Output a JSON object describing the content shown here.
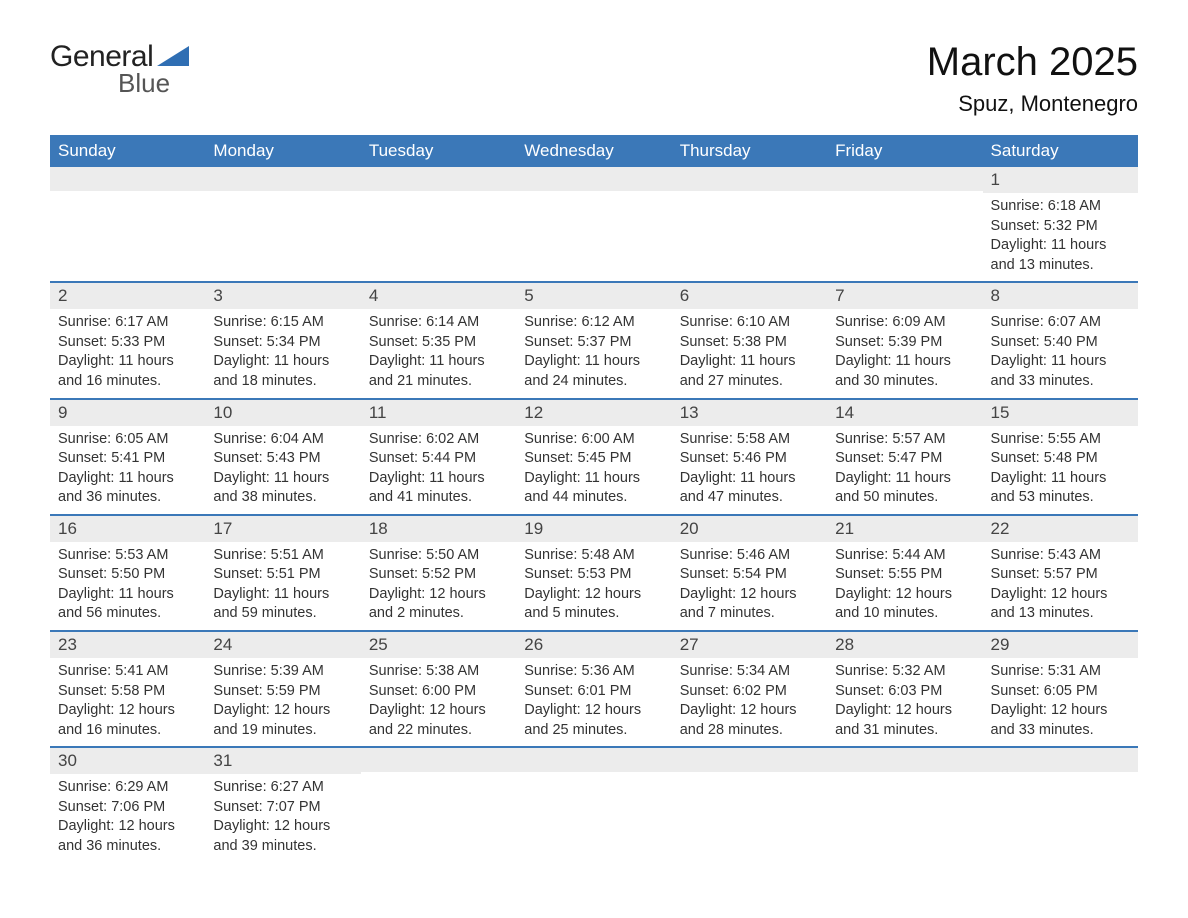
{
  "brand": {
    "general": "General",
    "blue": "Blue",
    "logo_color": "#2f6eb3"
  },
  "title": "March 2025",
  "location": "Spuz, Montenegro",
  "colors": {
    "header_bg": "#3b78b8",
    "header_text": "#ffffff",
    "strip_bg": "#ececec",
    "row_border": "#3b78b8",
    "text": "#333333",
    "bg": "#ffffff"
  },
  "typography": {
    "month_title_fontsize": 40,
    "location_fontsize": 22,
    "header_fontsize": 17,
    "daynum_fontsize": 17,
    "body_fontsize": 14.5,
    "logo_general_fontsize": 30,
    "logo_blue_fontsize": 26
  },
  "day_names": [
    "Sunday",
    "Monday",
    "Tuesday",
    "Wednesday",
    "Thursday",
    "Friday",
    "Saturday"
  ],
  "weeks": [
    [
      {
        "empty": true
      },
      {
        "empty": true
      },
      {
        "empty": true
      },
      {
        "empty": true
      },
      {
        "empty": true
      },
      {
        "empty": true
      },
      {
        "day": "1",
        "sunrise": "Sunrise: 6:18 AM",
        "sunset": "Sunset: 5:32 PM",
        "daylight1": "Daylight: 11 hours",
        "daylight2": "and 13 minutes."
      }
    ],
    [
      {
        "day": "2",
        "sunrise": "Sunrise: 6:17 AM",
        "sunset": "Sunset: 5:33 PM",
        "daylight1": "Daylight: 11 hours",
        "daylight2": "and 16 minutes."
      },
      {
        "day": "3",
        "sunrise": "Sunrise: 6:15 AM",
        "sunset": "Sunset: 5:34 PM",
        "daylight1": "Daylight: 11 hours",
        "daylight2": "and 18 minutes."
      },
      {
        "day": "4",
        "sunrise": "Sunrise: 6:14 AM",
        "sunset": "Sunset: 5:35 PM",
        "daylight1": "Daylight: 11 hours",
        "daylight2": "and 21 minutes."
      },
      {
        "day": "5",
        "sunrise": "Sunrise: 6:12 AM",
        "sunset": "Sunset: 5:37 PM",
        "daylight1": "Daylight: 11 hours",
        "daylight2": "and 24 minutes."
      },
      {
        "day": "6",
        "sunrise": "Sunrise: 6:10 AM",
        "sunset": "Sunset: 5:38 PM",
        "daylight1": "Daylight: 11 hours",
        "daylight2": "and 27 minutes."
      },
      {
        "day": "7",
        "sunrise": "Sunrise: 6:09 AM",
        "sunset": "Sunset: 5:39 PM",
        "daylight1": "Daylight: 11 hours",
        "daylight2": "and 30 minutes."
      },
      {
        "day": "8",
        "sunrise": "Sunrise: 6:07 AM",
        "sunset": "Sunset: 5:40 PM",
        "daylight1": "Daylight: 11 hours",
        "daylight2": "and 33 minutes."
      }
    ],
    [
      {
        "day": "9",
        "sunrise": "Sunrise: 6:05 AM",
        "sunset": "Sunset: 5:41 PM",
        "daylight1": "Daylight: 11 hours",
        "daylight2": "and 36 minutes."
      },
      {
        "day": "10",
        "sunrise": "Sunrise: 6:04 AM",
        "sunset": "Sunset: 5:43 PM",
        "daylight1": "Daylight: 11 hours",
        "daylight2": "and 38 minutes."
      },
      {
        "day": "11",
        "sunrise": "Sunrise: 6:02 AM",
        "sunset": "Sunset: 5:44 PM",
        "daylight1": "Daylight: 11 hours",
        "daylight2": "and 41 minutes."
      },
      {
        "day": "12",
        "sunrise": "Sunrise: 6:00 AM",
        "sunset": "Sunset: 5:45 PM",
        "daylight1": "Daylight: 11 hours",
        "daylight2": "and 44 minutes."
      },
      {
        "day": "13",
        "sunrise": "Sunrise: 5:58 AM",
        "sunset": "Sunset: 5:46 PM",
        "daylight1": "Daylight: 11 hours",
        "daylight2": "and 47 minutes."
      },
      {
        "day": "14",
        "sunrise": "Sunrise: 5:57 AM",
        "sunset": "Sunset: 5:47 PM",
        "daylight1": "Daylight: 11 hours",
        "daylight2": "and 50 minutes."
      },
      {
        "day": "15",
        "sunrise": "Sunrise: 5:55 AM",
        "sunset": "Sunset: 5:48 PM",
        "daylight1": "Daylight: 11 hours",
        "daylight2": "and 53 minutes."
      }
    ],
    [
      {
        "day": "16",
        "sunrise": "Sunrise: 5:53 AM",
        "sunset": "Sunset: 5:50 PM",
        "daylight1": "Daylight: 11 hours",
        "daylight2": "and 56 minutes."
      },
      {
        "day": "17",
        "sunrise": "Sunrise: 5:51 AM",
        "sunset": "Sunset: 5:51 PM",
        "daylight1": "Daylight: 11 hours",
        "daylight2": "and 59 minutes."
      },
      {
        "day": "18",
        "sunrise": "Sunrise: 5:50 AM",
        "sunset": "Sunset: 5:52 PM",
        "daylight1": "Daylight: 12 hours",
        "daylight2": "and 2 minutes."
      },
      {
        "day": "19",
        "sunrise": "Sunrise: 5:48 AM",
        "sunset": "Sunset: 5:53 PM",
        "daylight1": "Daylight: 12 hours",
        "daylight2": "and 5 minutes."
      },
      {
        "day": "20",
        "sunrise": "Sunrise: 5:46 AM",
        "sunset": "Sunset: 5:54 PM",
        "daylight1": "Daylight: 12 hours",
        "daylight2": "and 7 minutes."
      },
      {
        "day": "21",
        "sunrise": "Sunrise: 5:44 AM",
        "sunset": "Sunset: 5:55 PM",
        "daylight1": "Daylight: 12 hours",
        "daylight2": "and 10 minutes."
      },
      {
        "day": "22",
        "sunrise": "Sunrise: 5:43 AM",
        "sunset": "Sunset: 5:57 PM",
        "daylight1": "Daylight: 12 hours",
        "daylight2": "and 13 minutes."
      }
    ],
    [
      {
        "day": "23",
        "sunrise": "Sunrise: 5:41 AM",
        "sunset": "Sunset: 5:58 PM",
        "daylight1": "Daylight: 12 hours",
        "daylight2": "and 16 minutes."
      },
      {
        "day": "24",
        "sunrise": "Sunrise: 5:39 AM",
        "sunset": "Sunset: 5:59 PM",
        "daylight1": "Daylight: 12 hours",
        "daylight2": "and 19 minutes."
      },
      {
        "day": "25",
        "sunrise": "Sunrise: 5:38 AM",
        "sunset": "Sunset: 6:00 PM",
        "daylight1": "Daylight: 12 hours",
        "daylight2": "and 22 minutes."
      },
      {
        "day": "26",
        "sunrise": "Sunrise: 5:36 AM",
        "sunset": "Sunset: 6:01 PM",
        "daylight1": "Daylight: 12 hours",
        "daylight2": "and 25 minutes."
      },
      {
        "day": "27",
        "sunrise": "Sunrise: 5:34 AM",
        "sunset": "Sunset: 6:02 PM",
        "daylight1": "Daylight: 12 hours",
        "daylight2": "and 28 minutes."
      },
      {
        "day": "28",
        "sunrise": "Sunrise: 5:32 AM",
        "sunset": "Sunset: 6:03 PM",
        "daylight1": "Daylight: 12 hours",
        "daylight2": "and 31 minutes."
      },
      {
        "day": "29",
        "sunrise": "Sunrise: 5:31 AM",
        "sunset": "Sunset: 6:05 PM",
        "daylight1": "Daylight: 12 hours",
        "daylight2": "and 33 minutes."
      }
    ],
    [
      {
        "day": "30",
        "sunrise": "Sunrise: 6:29 AM",
        "sunset": "Sunset: 7:06 PM",
        "daylight1": "Daylight: 12 hours",
        "daylight2": "and 36 minutes."
      },
      {
        "day": "31",
        "sunrise": "Sunrise: 6:27 AM",
        "sunset": "Sunset: 7:07 PM",
        "daylight1": "Daylight: 12 hours",
        "daylight2": "and 39 minutes."
      },
      {
        "empty": true
      },
      {
        "empty": true
      },
      {
        "empty": true
      },
      {
        "empty": true
      },
      {
        "empty": true
      }
    ]
  ]
}
